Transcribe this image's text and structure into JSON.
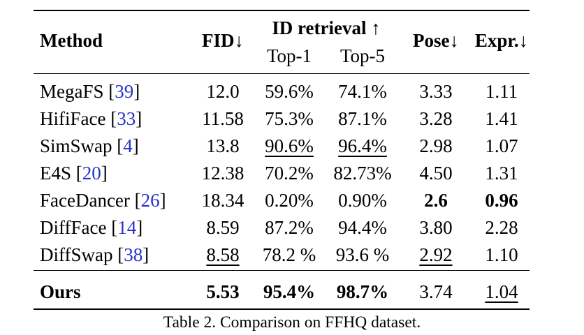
{
  "table": {
    "headers": {
      "method": "Method",
      "fid": "FID↓",
      "id_retrieval": "ID retrieval ↑",
      "top1": "Top-1",
      "top5": "Top-5",
      "pose": "Pose↓",
      "expr": "Expr.↓"
    },
    "rows": [
      {
        "method": "MegaFS",
        "ref": "39",
        "fid": "12.0",
        "top1": "59.6%",
        "top5": "74.1%",
        "pose": "3.33",
        "expr": "1.11"
      },
      {
        "method": "HifiFace",
        "ref": "33",
        "fid": "11.58",
        "top1": "75.3%",
        "top5": "87.1%",
        "pose": "3.28",
        "expr": "1.41"
      },
      {
        "method": "SimSwap",
        "ref": "4",
        "fid": "13.8",
        "top1": "90.6%",
        "top5": "96.4%",
        "pose": "2.98",
        "expr": "1.07"
      },
      {
        "method": "E4S",
        "ref": "20",
        "fid": "12.38",
        "top1": "70.2%",
        "top5": "82.73%",
        "pose": "4.50",
        "expr": "1.31"
      },
      {
        "method": "FaceDancer",
        "ref": "26",
        "fid": "18.34",
        "top1": "0.20%",
        "top5": "0.90%",
        "pose": "2.6",
        "expr": "0.96"
      },
      {
        "method": "DiffFace",
        "ref": "14",
        "fid": "8.59",
        "top1": "87.2%",
        "top5": "94.4%",
        "pose": "3.80",
        "expr": "2.28"
      },
      {
        "method": "DiffSwap",
        "ref": "38",
        "fid": "8.58",
        "top1": "78.2 %",
        "top5": "93.6 %",
        "pose": "2.92",
        "expr": "1.10"
      }
    ],
    "ours": {
      "method": "Ours",
      "fid": "5.53",
      "top1": "95.4%",
      "top5": "98.7%",
      "pose": "3.74",
      "expr": "1.04"
    },
    "caption": "Table 2. Comparison on FFHQ dataset."
  }
}
